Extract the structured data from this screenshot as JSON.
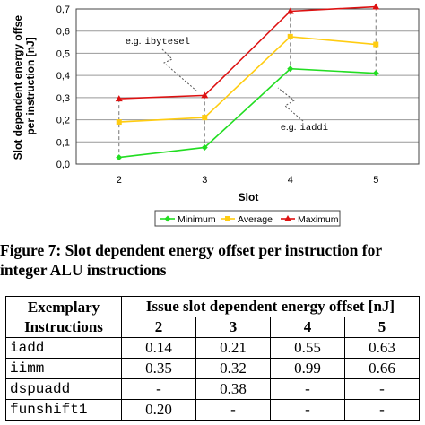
{
  "chart_data": {
    "type": "line",
    "title": "",
    "xlabel": "Slot",
    "ylabel": "Slot dependent energy offset per instruction [nJ]",
    "x": [
      2,
      3,
      4,
      5
    ],
    "ylim": [
      0,
      0.7
    ],
    "yticks": [
      "0,0",
      "0,1",
      "0,2",
      "0,3",
      "0,4",
      "0,5",
      "0,6",
      "0,7"
    ],
    "xticks": [
      "2",
      "3",
      "4",
      "5"
    ],
    "grid": true,
    "legend_position": "bottom",
    "series": [
      {
        "name": "Minimum",
        "values": [
          0.03,
          0.075,
          0.43,
          0.41
        ],
        "color": "#22dd22",
        "marker": "diamond"
      },
      {
        "name": "Average",
        "values": [
          0.19,
          0.21,
          0.575,
          0.54
        ],
        "color": "#ffcc11",
        "marker": "square"
      },
      {
        "name": "Maximum",
        "values": [
          0.295,
          0.31,
          0.69,
          0.71
        ],
        "color": "#dd1111",
        "marker": "triangle"
      }
    ],
    "annotations": [
      {
        "prefix": "e.g.",
        "code": "ibytesel"
      },
      {
        "prefix": "e.g.",
        "code": "iaddi"
      }
    ]
  },
  "caption": {
    "line1": "Figure 7: Slot dependent energy offset per instruction for",
    "line2": "integer ALU instructions"
  },
  "table": {
    "header_left": [
      "Exemplary",
      "Instructions"
    ],
    "header_group": "Issue slot dependent energy offset [nJ]",
    "slots": [
      "2",
      "3",
      "4",
      "5"
    ],
    "rows": [
      {
        "name": "iadd",
        "values": [
          "0.14",
          "0.21",
          "0.55",
          "0.63"
        ]
      },
      {
        "name": "iimm",
        "values": [
          "0.35",
          "0.32",
          "0.99",
          "0.66"
        ]
      },
      {
        "name": "dspuadd",
        "values": [
          "-",
          "0.38",
          "-",
          "-"
        ]
      },
      {
        "name": "funshift1",
        "values": [
          "0.20",
          "-",
          "-",
          "-"
        ]
      }
    ]
  }
}
